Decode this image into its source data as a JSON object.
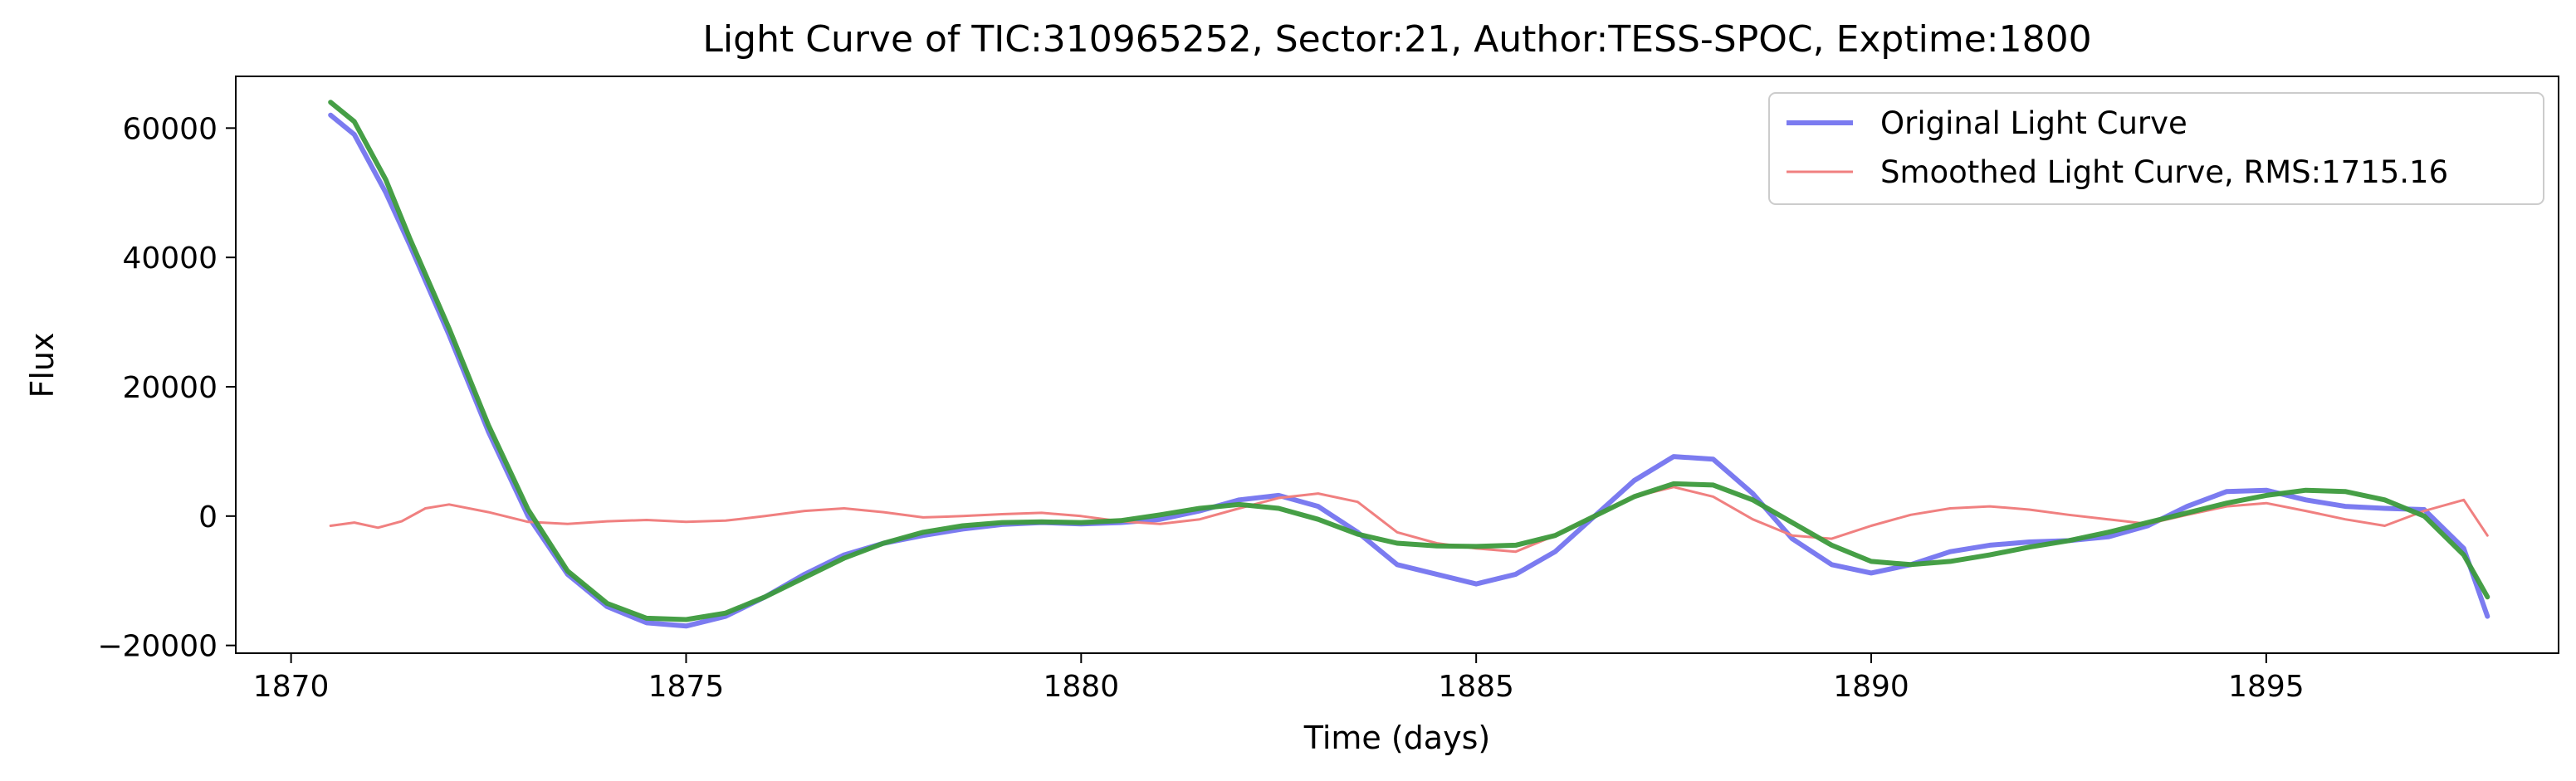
{
  "chart_data": {
    "type": "line",
    "title": "Light Curve of TIC:310965252, Sector:21, Author:TESS-SPOC, Exptime:1800",
    "xlabel": "Time (days)",
    "ylabel": "Flux",
    "xlim": [
      1869.3,
      1898.7
    ],
    "ylim": [
      -21200,
      68000
    ],
    "x_ticks": [
      1870,
      1875,
      1880,
      1885,
      1890,
      1895
    ],
    "x_tick_labels": [
      "1870",
      "1875",
      "1880",
      "1885",
      "1890",
      "1895"
    ],
    "y_ticks": [
      -20000,
      0,
      20000,
      40000,
      60000
    ],
    "y_tick_labels": [
      "−20000",
      "0",
      "20000",
      "40000",
      "60000"
    ],
    "grid": false,
    "legend_position": "top-right",
    "series": [
      {
        "name": "Original Light Curve",
        "color": "#7b7bf0",
        "x": [
          1870.5,
          1870.8,
          1871.2,
          1871.5,
          1872.0,
          1872.5,
          1873.0,
          1873.5,
          1874.0,
          1874.5,
          1875.0,
          1875.5,
          1876.0,
          1876.5,
          1877.0,
          1877.5,
          1878.0,
          1878.5,
          1879.0,
          1879.5,
          1880.0,
          1880.5,
          1881.0,
          1881.5,
          1882.0,
          1882.5,
          1883.0,
          1883.5,
          1884.0,
          1884.5,
          1885.0,
          1885.5,
          1886.0,
          1886.5,
          1887.0,
          1887.5,
          1888.0,
          1888.5,
          1889.0,
          1889.5,
          1890.0,
          1890.5,
          1891.0,
          1891.5,
          1892.0,
          1892.5,
          1893.0,
          1893.5,
          1894.0,
          1894.5,
          1895.0,
          1895.5,
          1896.0,
          1896.5,
          1897.0,
          1897.5,
          1897.8
        ],
        "y": [
          62000,
          59000,
          50000,
          42000,
          28000,
          13000,
          0,
          -9000,
          -14000,
          -16500,
          -17000,
          -15500,
          -12500,
          -9000,
          -6000,
          -4200,
          -3000,
          -2000,
          -1300,
          -1000,
          -1200,
          -1000,
          -500,
          800,
          2500,
          3200,
          1500,
          -2500,
          -7500,
          -9000,
          -10500,
          -9000,
          -5500,
          0,
          5500,
          9200,
          8800,
          3500,
          -3500,
          -7500,
          -8800,
          -7500,
          -5500,
          -4500,
          -4000,
          -3800,
          -3200,
          -1500,
          1500,
          3800,
          4000,
          2500,
          1500,
          1200,
          1000,
          -5000,
          -15500
        ]
      },
      {
        "name": "Smoothed Light Curve, RMS:1715.16",
        "color": "#f08080",
        "x": [
          1870.5,
          1870.8,
          1871.1,
          1871.4,
          1871.7,
          1872.0,
          1872.5,
          1873.0,
          1873.5,
          1874.0,
          1874.5,
          1875.0,
          1875.5,
          1876.0,
          1876.5,
          1877.0,
          1877.5,
          1878.0,
          1878.5,
          1879.0,
          1879.5,
          1880.0,
          1880.5,
          1881.0,
          1881.5,
          1882.0,
          1882.5,
          1883.0,
          1883.5,
          1884.0,
          1884.5,
          1885.0,
          1885.5,
          1886.0,
          1886.5,
          1887.0,
          1887.5,
          1888.0,
          1888.5,
          1889.0,
          1889.5,
          1890.0,
          1890.5,
          1891.0,
          1891.5,
          1892.0,
          1892.5,
          1893.0,
          1893.5,
          1894.0,
          1894.5,
          1895.0,
          1895.5,
          1896.0,
          1896.5,
          1897.0,
          1897.5,
          1897.8
        ],
        "y": [
          -1500,
          -1000,
          -1800,
          -800,
          1200,
          1800,
          600,
          -900,
          -1200,
          -800,
          -600,
          -900,
          -700,
          0,
          800,
          1200,
          600,
          -200,
          0,
          300,
          500,
          0,
          -800,
          -1200,
          -500,
          1200,
          2800,
          3500,
          2200,
          -2500,
          -4200,
          -5000,
          -5500,
          -3000,
          0,
          3000,
          4500,
          3000,
          -500,
          -3000,
          -3500,
          -1500,
          200,
          1200,
          1500,
          1000,
          200,
          -500,
          -1200,
          200,
          1500,
          2000,
          800,
          -500,
          -1500,
          800,
          2500,
          -3000
        ]
      },
      {
        "color": "#3c9a3c",
        "x": [
          1870.5,
          1870.8,
          1871.2,
          1871.5,
          1872.0,
          1872.5,
          1873.0,
          1873.5,
          1874.0,
          1874.5,
          1875.0,
          1875.5,
          1876.0,
          1876.5,
          1877.0,
          1877.5,
          1878.0,
          1878.5,
          1879.0,
          1879.5,
          1880.0,
          1880.5,
          1881.0,
          1881.5,
          1882.0,
          1882.5,
          1883.0,
          1883.5,
          1884.0,
          1884.5,
          1885.0,
          1885.5,
          1886.0,
          1886.5,
          1887.0,
          1887.5,
          1888.0,
          1888.5,
          1889.0,
          1889.5,
          1890.0,
          1890.5,
          1891.0,
          1891.5,
          1892.0,
          1892.5,
          1893.0,
          1893.5,
          1894.0,
          1894.5,
          1895.0,
          1895.5,
          1896.0,
          1896.5,
          1897.0,
          1897.5,
          1897.8
        ],
        "y": [
          64000,
          61000,
          52000,
          43000,
          29000,
          14000,
          1000,
          -8500,
          -13500,
          -15800,
          -16000,
          -15000,
          -12500,
          -9500,
          -6500,
          -4200,
          -2500,
          -1500,
          -1000,
          -900,
          -1000,
          -700,
          200,
          1200,
          1800,
          1200,
          -500,
          -2800,
          -4200,
          -4600,
          -4700,
          -4500,
          -3000,
          0,
          3000,
          5000,
          4800,
          2500,
          -1000,
          -4500,
          -7000,
          -7500,
          -7000,
          -6000,
          -4800,
          -3800,
          -2500,
          -1000,
          500,
          2000,
          3200,
          4000,
          3800,
          2500,
          0,
          -6000,
          -12500
        ]
      }
    ]
  }
}
